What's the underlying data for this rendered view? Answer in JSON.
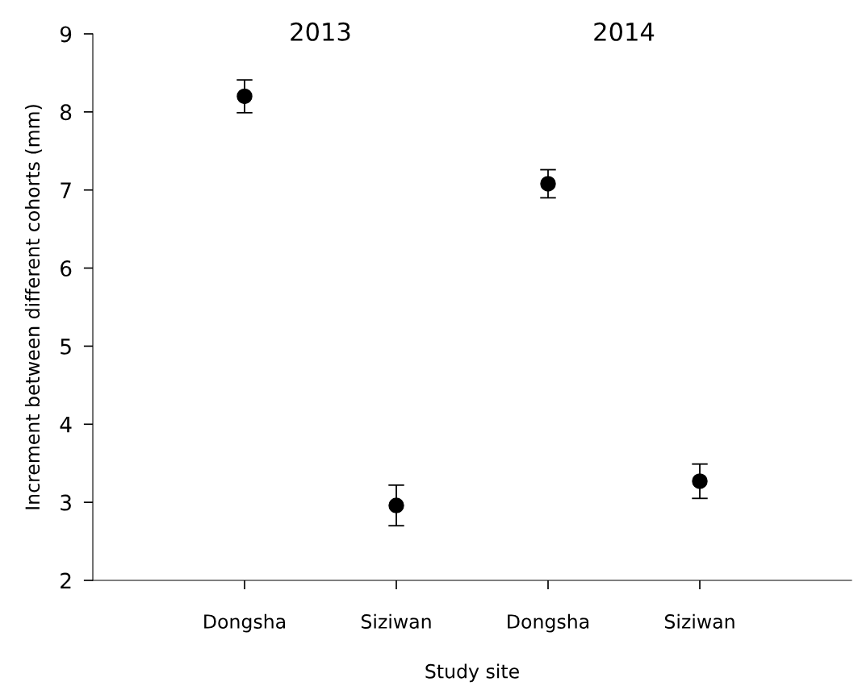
{
  "chart_data": {
    "type": "scatter",
    "xlabel": "Study site",
    "ylabel": "Increment between different cohorts (mm)",
    "categories": [
      "Dongsha",
      "Siziwan",
      "Dongsha",
      "Siziwan"
    ],
    "series": [
      {
        "color": "#000000",
        "values": [
          8.2,
          2.96,
          7.08,
          3.27
        ],
        "errors": [
          0.21,
          0.26,
          0.18,
          0.22
        ]
      }
    ],
    "marker": "circle",
    "ylim": [
      2,
      9
    ],
    "yticks": [
      2,
      3,
      4,
      5,
      6,
      7,
      8,
      9
    ],
    "annotations": [
      "2013",
      "2014"
    ],
    "grid": false,
    "legend": false
  }
}
